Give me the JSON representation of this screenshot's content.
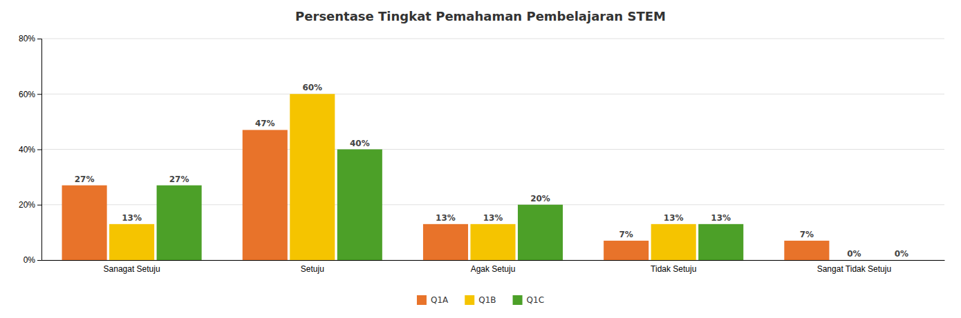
{
  "chart_data": {
    "type": "bar",
    "title": "Persentase Tingkat Pemahaman  Pembelajaran STEM",
    "categories": [
      "Sanagat Setuju",
      "Setuju",
      "Agak Setuju",
      "Tidak Setuju",
      "Sangat Tidak Setuju"
    ],
    "series": [
      {
        "name": "Q1A",
        "color": "#E8732A",
        "values": [
          27,
          47,
          13,
          7,
          7
        ],
        "value_labels": [
          "27%",
          "47%",
          "13%",
          "7%",
          "7%"
        ]
      },
      {
        "name": "Q1B",
        "color": "#F5C400",
        "values": [
          13,
          60,
          13,
          13,
          0
        ],
        "value_labels": [
          "13%",
          "60%",
          "13%",
          "13%",
          "0%"
        ]
      },
      {
        "name": "Q1C",
        "color": "#4CA028",
        "values": [
          27,
          40,
          20,
          13,
          0
        ],
        "value_labels": [
          "27%",
          "40%",
          "20%",
          "13%",
          "0%"
        ]
      }
    ],
    "ylim": [
      0,
      80
    ],
    "yticks": [
      {
        "value": 0,
        "label": "0%"
      },
      {
        "value": 20,
        "label": "20%"
      },
      {
        "value": 40,
        "label": "40%"
      },
      {
        "value": 60,
        "label": "60%"
      },
      {
        "value": 80,
        "label": "80%"
      }
    ],
    "grid": true,
    "data_labels": true,
    "legend": "bottom"
  }
}
